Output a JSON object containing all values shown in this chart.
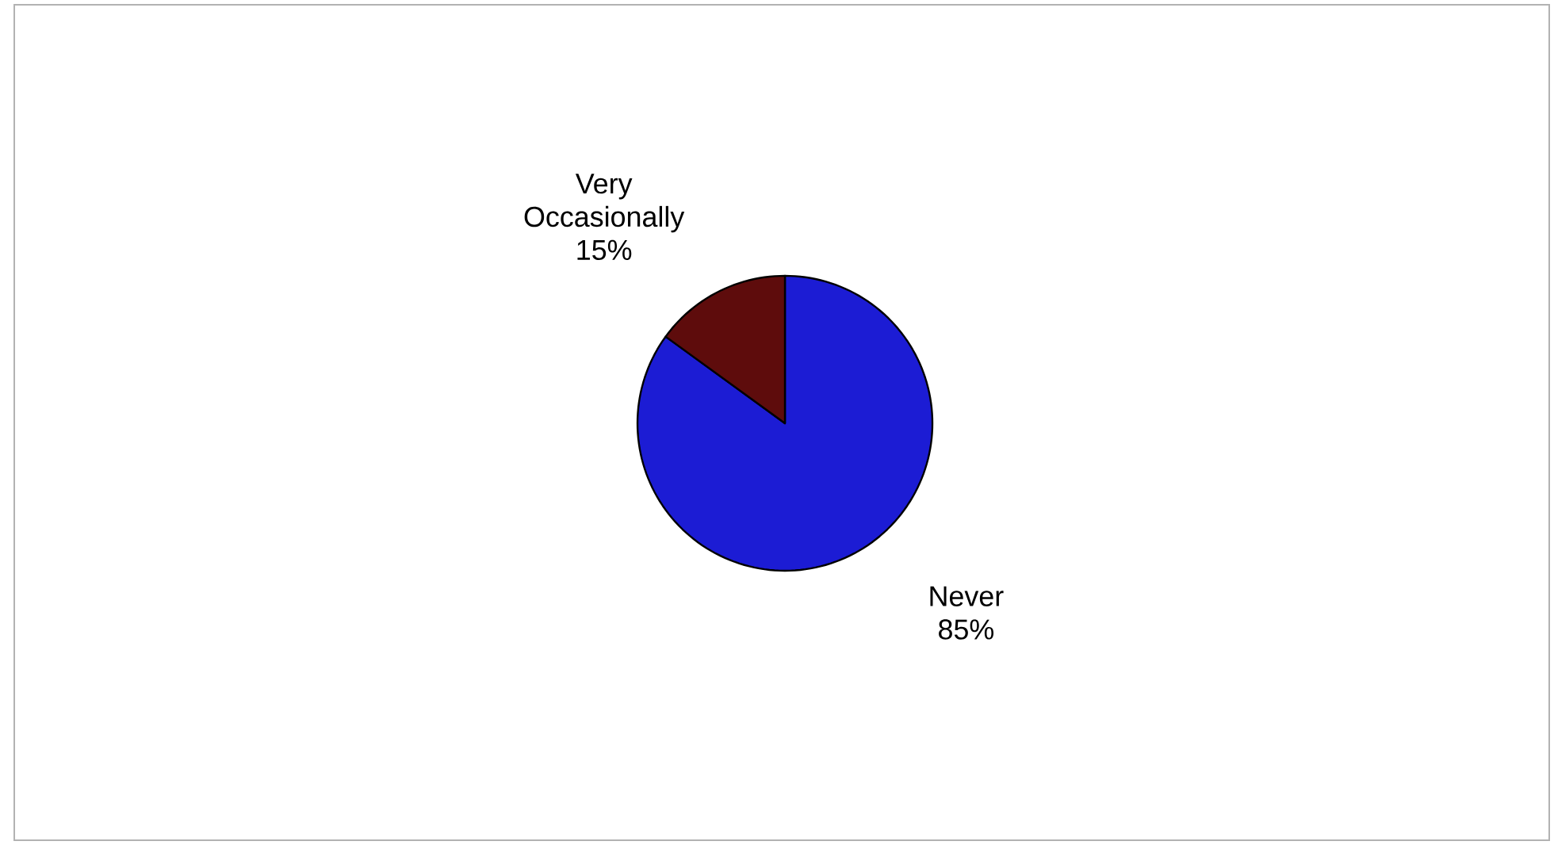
{
  "chart_data": {
    "type": "pie",
    "categories": [
      "Never",
      "Very Occasionally"
    ],
    "values": [
      85,
      15
    ],
    "colors": [
      "#1c1cd4",
      "#5e0c0c"
    ],
    "value_labels": [
      "85%",
      "15%"
    ]
  }
}
